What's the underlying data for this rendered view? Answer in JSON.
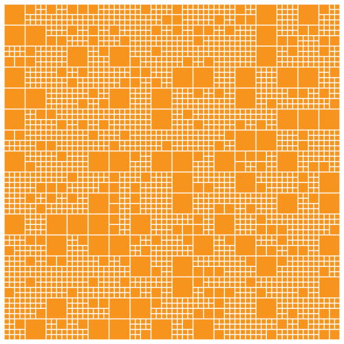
{
  "colors": {
    "background": "#ffffff",
    "tile": "#f7941d"
  },
  "pattern": {
    "description_free": true,
    "seed": 20240607
  }
}
